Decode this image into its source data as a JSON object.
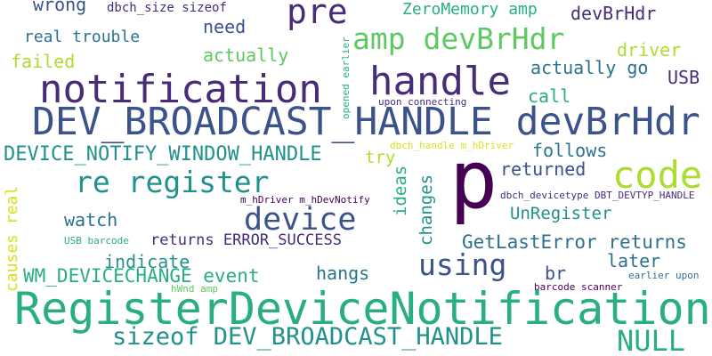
{
  "wordcloud": {
    "colors": {
      "background": "#ffffff",
      "dark_purple": "#440154",
      "indigo": "#472c7a",
      "slate_blue": "#3b528b",
      "steel_blue": "#2c728e",
      "teal": "#21918c",
      "sea_green": "#28ae80",
      "green": "#5ec962",
      "lime": "#addc30",
      "yellow": "#d8e219"
    },
    "words": [
      "RegisterDeviceNotification",
      "DEV_BROADCAST_HANDLE devBrHdr",
      "p",
      "notification",
      "handle",
      "code",
      "amp devBrHdr",
      "re register",
      "device",
      "sizeof DEV_BROADCAST_HANDLE",
      "NULL",
      "using",
      "pre",
      "DEVICE_NOTIFY_WINDOW_HANDLE",
      "WM_DEVICECHANGE event",
      "GetLastError returns",
      "returns ERROR_SUCCESS",
      "UnRegister",
      "changes",
      "ideas",
      "indicate",
      "watch",
      "hangs",
      "later",
      "br",
      "returned",
      "follows",
      "try",
      "call",
      "USB",
      "actually go",
      "driver",
      "actually",
      "need",
      "failed",
      "real trouble",
      "wrong",
      "ZeroMemory amp",
      "devBrHdr",
      "causes real",
      "dbch_size sizeof",
      "opened earlier",
      "upon connecting",
      "dbch_handle m_hDriver",
      "dbch_devicetype DBT_DEVTYP_HANDLE",
      "m_hDriver m_hDevNotify",
      "USB barcode",
      "hWnd amp",
      "earlier upon",
      "barcode scanner"
    ]
  }
}
